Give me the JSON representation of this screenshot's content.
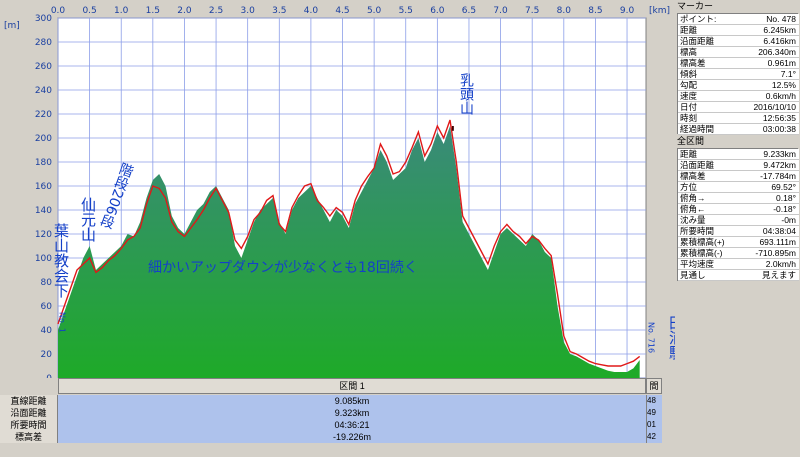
{
  "chart_data": {
    "type": "area",
    "x_unit_label": "[km]",
    "y_unit_label": "[m]",
    "xlim": [
      0,
      9.3
    ],
    "ylim": [
      0,
      300
    ],
    "x_ticks": [
      "0.0",
      "0.5",
      "1.0",
      "1.5",
      "2.0",
      "2.5",
      "3.0",
      "3.5",
      "4.0",
      "4.5",
      "5.0",
      "5.5",
      "6.0",
      "6.5",
      "7.0",
      "7.5",
      "8.0",
      "8.5",
      "9.0"
    ],
    "y_ticks": [
      "0",
      "20",
      "40",
      "60",
      "80",
      "100",
      "120",
      "140",
      "160",
      "180",
      "200",
      "220",
      "240",
      "260",
      "280",
      "300"
    ],
    "grid": true,
    "series": [
      {
        "name": "elevation-fill",
        "color": "#2e8b4e",
        "x": [
          0,
          0.1,
          0.2,
          0.3,
          0.4,
          0.5,
          0.6,
          0.7,
          0.8,
          0.9,
          1.0,
          1.1,
          1.2,
          1.3,
          1.4,
          1.5,
          1.6,
          1.7,
          1.8,
          1.9,
          2.0,
          2.1,
          2.2,
          2.3,
          2.4,
          2.5,
          2.6,
          2.7,
          2.8,
          2.9,
          3.0,
          3.1,
          3.2,
          3.3,
          3.4,
          3.5,
          3.6,
          3.7,
          3.8,
          3.9,
          4.0,
          4.1,
          4.2,
          4.3,
          4.4,
          4.5,
          4.6,
          4.7,
          4.8,
          4.9,
          5.0,
          5.1,
          5.2,
          5.3,
          5.4,
          5.5,
          5.6,
          5.7,
          5.8,
          5.9,
          6.0,
          6.1,
          6.2,
          6.3,
          6.4,
          6.5,
          6.6,
          6.7,
          6.8,
          6.9,
          7.0,
          7.1,
          7.2,
          7.3,
          7.4,
          7.5,
          7.6,
          7.7,
          7.8,
          7.9,
          8.0,
          8.1,
          8.2,
          8.3,
          8.4,
          8.5,
          8.6,
          8.7,
          8.8,
          8.9,
          9.0,
          9.1,
          9.2
        ],
        "y": [
          40,
          55,
          70,
          85,
          100,
          110,
          90,
          95,
          100,
          105,
          110,
          120,
          118,
          130,
          150,
          165,
          170,
          160,
          135,
          125,
          120,
          130,
          140,
          145,
          155,
          160,
          150,
          140,
          110,
          100,
          115,
          130,
          140,
          145,
          150,
          130,
          120,
          140,
          150,
          155,
          160,
          150,
          140,
          130,
          140,
          135,
          125,
          145,
          155,
          165,
          175,
          190,
          180,
          165,
          170,
          175,
          190,
          200,
          180,
          190,
          205,
          195,
          210,
          175,
          130,
          120,
          110,
          100,
          90,
          105,
          120,
          125,
          120,
          115,
          110,
          120,
          115,
          105,
          100,
          60,
          30,
          20,
          18,
          15,
          12,
          10,
          8,
          6,
          5,
          5,
          5,
          8,
          15
        ]
      },
      {
        "name": "elevation-line",
        "color": "#e01818",
        "x": [
          0,
          0.1,
          0.2,
          0.3,
          0.4,
          0.5,
          0.6,
          0.7,
          0.8,
          0.9,
          1.0,
          1.1,
          1.2,
          1.3,
          1.4,
          1.5,
          1.6,
          1.7,
          1.8,
          1.9,
          2.0,
          2.1,
          2.2,
          2.3,
          2.4,
          2.5,
          2.6,
          2.7,
          2.8,
          2.9,
          3.0,
          3.1,
          3.2,
          3.3,
          3.4,
          3.5,
          3.6,
          3.7,
          3.8,
          3.9,
          4.0,
          4.1,
          4.2,
          4.3,
          4.4,
          4.5,
          4.6,
          4.7,
          4.8,
          4.9,
          5.0,
          5.1,
          5.2,
          5.3,
          5.4,
          5.5,
          5.6,
          5.7,
          5.8,
          5.9,
          6.0,
          6.1,
          6.2,
          6.3,
          6.4,
          6.5,
          6.6,
          6.7,
          6.8,
          6.9,
          7.0,
          7.1,
          7.2,
          7.3,
          7.4,
          7.5,
          7.6,
          7.7,
          7.8,
          7.9,
          8.0,
          8.1,
          8.2,
          8.3,
          8.4,
          8.5,
          8.6,
          8.7,
          8.8,
          8.9,
          9.0,
          9.1,
          9.2
        ],
        "y": [
          45,
          60,
          75,
          90,
          95,
          100,
          88,
          92,
          98,
          102,
          108,
          115,
          118,
          125,
          145,
          160,
          158,
          150,
          130,
          122,
          118,
          125,
          132,
          140,
          150,
          158,
          148,
          138,
          115,
          108,
          118,
          132,
          138,
          148,
          152,
          128,
          122,
          142,
          152,
          160,
          162,
          148,
          142,
          135,
          142,
          138,
          128,
          148,
          160,
          168,
          175,
          195,
          185,
          170,
          172,
          180,
          192,
          205,
          185,
          195,
          210,
          200,
          215,
          180,
          135,
          125,
          115,
          105,
          95,
          110,
          122,
          128,
          122,
          118,
          112,
          118,
          115,
          108,
          102,
          70,
          35,
          22,
          20,
          17,
          14,
          12,
          11,
          10,
          10,
          10,
          12,
          14,
          18
        ]
      }
    ],
    "annotations": [
      {
        "text": "仙元山",
        "x": 0.4,
        "y": 120
      },
      {
        "text": "葉山教会下",
        "x": 0.05,
        "y": 95
      },
      {
        "text": "階段206段",
        "x": 1.3,
        "y": 160
      },
      {
        "text": "乳頭山",
        "x": 6.1,
        "y": 240
      },
      {
        "text": "細かいアップダウンが少なくとも18回続く",
        "x": 1.4,
        "y": 100
      },
      {
        "text": "田浦駅",
        "x": 9.1,
        "y": 50
      },
      {
        "text": "No. 716",
        "x": 8.95,
        "y": 30
      },
      {
        "text": "No. 1",
        "x": 0.0,
        "y": 48
      }
    ]
  },
  "table": {
    "header": "区間 1",
    "header_right": "間",
    "rows": [
      {
        "label": "直線距離",
        "value": "9.085km",
        "right": "48"
      },
      {
        "label": "沿面距離",
        "value": "9.323km",
        "right": "49"
      },
      {
        "label": "所要時間",
        "value": "04:36:21",
        "right": "01"
      },
      {
        "label": "標高差",
        "value": "-19.226m",
        "right": "42"
      }
    ]
  },
  "marker_panel": {
    "title": "マーカー",
    "rows": [
      {
        "label": "ポイント:",
        "value": "No. 478"
      },
      {
        "label": "距離",
        "value": "6.245km"
      },
      {
        "label": "沿面距離",
        "value": "6.416km"
      },
      {
        "label": "標高",
        "value": "206.340m"
      },
      {
        "label": "標高差",
        "value": "0.961m"
      },
      {
        "label": "傾斜",
        "value": "7.1°"
      },
      {
        "label": "勾配",
        "value": "12.5%"
      },
      {
        "label": "速度",
        "value": "0.6km/h"
      },
      {
        "label": "日付",
        "value": "2016/10/10"
      },
      {
        "label": "時刻",
        "value": "12:56:35"
      },
      {
        "label": "経過時間",
        "value": "03:00:38"
      }
    ]
  },
  "all_panel": {
    "title": "全区間",
    "rows": [
      {
        "label": "距離",
        "value": "9.233km"
      },
      {
        "label": "沿面距離",
        "value": "9.472km"
      },
      {
        "label": "標高差",
        "value": "-17.784m"
      },
      {
        "label": "方位",
        "value": "69.52°"
      },
      {
        "label": "俯角→",
        "value": "0.18°"
      },
      {
        "label": "俯角←",
        "value": "-0.18°"
      },
      {
        "label": "沈み量",
        "value": "-0m"
      },
      {
        "label": "所要時間",
        "value": "04:38:04"
      },
      {
        "label": "累積標高(+)",
        "value": "693.111m"
      },
      {
        "label": "累積標高(-)",
        "value": "-710.895m"
      },
      {
        "label": "平均速度",
        "value": "2.0km/h"
      },
      {
        "label": "見通し",
        "value": "見えます"
      }
    ]
  }
}
